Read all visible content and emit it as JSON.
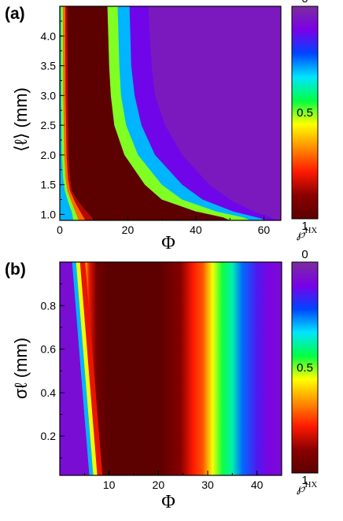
{
  "colors": {
    "colormap": [
      "#5c0000",
      "#8b0000",
      "#ff1a00",
      "#ff8c00",
      "#ffff00",
      "#00ff44",
      "#00e5ff",
      "#0044ff",
      "#7a00e8",
      "#7b2d9e"
    ],
    "colormap_note": "value 1 at bottom (dark red) to 0 at top (purple)"
  },
  "chart_data": [
    {
      "type": "heatmap",
      "panel_label": "(a)",
      "xlabel": "Φ",
      "ylabel": "⟨ℓ⟩ (mm)",
      "x_ticks": [
        "0",
        "20",
        "40",
        "60"
      ],
      "x_tick_values": [
        0,
        20,
        40,
        60
      ],
      "y_ticks": [
        "1.0",
        "1.5",
        "2.0",
        "2.5",
        "3.0",
        "3.5",
        "4.0"
      ],
      "y_tick_values": [
        1.0,
        1.5,
        2.0,
        2.5,
        3.0,
        3.5,
        4.0
      ],
      "xlim": [
        0,
        65
      ],
      "ylim": [
        0.9,
        4.5
      ],
      "colorbar": {
        "labels": [
          "0",
          "0.5",
          "1"
        ],
        "label_values": [
          0,
          0.5,
          1
        ],
        "title": "℘",
        "title_sup": "HX"
      },
      "contours": [
        {
          "level": 0.85,
          "points": [
            [
              2.2,
              4.5
            ],
            [
              2.3,
              3.0
            ],
            [
              2.6,
              2.0
            ],
            [
              3.0,
              1.6
            ],
            [
              3.5,
              1.4
            ],
            [
              5,
              1.25
            ],
            [
              7,
              1.1
            ],
            [
              9,
              0.98
            ],
            [
              10,
              0.9
            ]
          ]
        },
        {
          "level": 0.7,
          "points": [
            [
              1.6,
              4.5
            ],
            [
              1.7,
              3.0
            ],
            [
              2.0,
              2.0
            ],
            [
              2.4,
              1.6
            ],
            [
              3.0,
              1.4
            ],
            [
              4.5,
              1.2
            ],
            [
              6,
              1.05
            ],
            [
              7.5,
              0.9
            ]
          ]
        },
        {
          "level": 0.5,
          "points": [
            [
              0.9,
              4.5
            ],
            [
              1.0,
              3.0
            ],
            [
              1.3,
              2.0
            ],
            [
              1.7,
              1.6
            ],
            [
              2.2,
              1.4
            ],
            [
              3.5,
              1.2
            ],
            [
              4.5,
              1.05
            ],
            [
              5.5,
              0.9
            ]
          ]
        },
        {
          "level": 0.3,
          "points": [
            [
              0.3,
              4.5
            ],
            [
              0.4,
              3.0
            ],
            [
              0.6,
              2.0
            ],
            [
              1.0,
              1.6
            ],
            [
              1.5,
              1.4
            ],
            [
              2.5,
              1.2
            ],
            [
              3.5,
              1.05
            ],
            [
              4,
              0.9
            ]
          ]
        },
        {
          "level": 0.75,
          "points": [
            [
              14,
              4.5
            ],
            [
              14.5,
              3.5
            ],
            [
              15,
              3.0
            ],
            [
              16,
              2.5
            ],
            [
              19,
              2.0
            ],
            [
              25,
              1.5
            ],
            [
              30,
              1.25
            ],
            [
              40,
              1.05
            ],
            [
              48,
              0.95
            ],
            [
              50,
              0.9
            ]
          ]
        },
        {
          "level": 0.5,
          "points": [
            [
              17,
              4.5
            ],
            [
              17.5,
              3.5
            ],
            [
              18,
              3.0
            ],
            [
              19.5,
              2.5
            ],
            [
              23,
              2.0
            ],
            [
              30,
              1.5
            ],
            [
              36,
              1.25
            ],
            [
              46,
              1.05
            ],
            [
              54,
              0.95
            ],
            [
              56,
              0.9
            ]
          ]
        },
        {
          "level": 0.3,
          "points": [
            [
              20.5,
              4.5
            ],
            [
              21,
              3.5
            ],
            [
              22,
              3.0
            ],
            [
              24,
              2.5
            ],
            [
              28,
              2.0
            ],
            [
              36,
              1.5
            ],
            [
              42,
              1.25
            ],
            [
              51,
              1.05
            ],
            [
              58,
              0.95
            ],
            [
              61,
              0.9
            ]
          ]
        },
        {
          "level": 0.12,
          "points": [
            [
              26,
              4.5
            ],
            [
              27,
              3.5
            ],
            [
              28,
              3.0
            ],
            [
              31,
              2.5
            ],
            [
              36,
              2.0
            ],
            [
              44,
              1.5
            ],
            [
              50,
              1.25
            ],
            [
              57,
              1.05
            ],
            [
              62,
              0.95
            ],
            [
              64,
              0.9
            ]
          ]
        }
      ]
    },
    {
      "type": "heatmap",
      "panel_label": "(b)",
      "xlabel": "Φ",
      "ylabel": "σℓ (mm)",
      "x_ticks": [
        "10",
        "20",
        "30",
        "40"
      ],
      "x_tick_values": [
        10,
        20,
        30,
        40
      ],
      "y_ticks": [
        "0.2",
        "0.4",
        "0.6",
        "0.8"
      ],
      "y_tick_values": [
        0.2,
        0.4,
        0.6,
        0.8
      ],
      "xlim": [
        0,
        45
      ],
      "ylim": [
        0.02,
        1.0
      ],
      "colorbar": {
        "labels": [
          "0",
          "0.5",
          "1"
        ],
        "label_values": [
          0,
          0.5,
          1
        ],
        "title": "℘",
        "title_sup": "HX"
      },
      "columns": [
        {
          "x": 0,
          "value": 0.08
        },
        {
          "x": 2.0,
          "value": 0.12
        },
        {
          "x": 3.5,
          "value": 0.25
        },
        {
          "x": 4.3,
          "value": 0.45
        },
        {
          "x": 5.0,
          "value": 0.6
        },
        {
          "x": 6.0,
          "value": 0.8
        },
        {
          "x": 7.5,
          "value": 0.95
        },
        {
          "x": 10,
          "value": 1.0
        },
        {
          "x": 20,
          "value": 1.0
        },
        {
          "x": 24.5,
          "value": 0.9
        },
        {
          "x": 27,
          "value": 0.78
        },
        {
          "x": 29,
          "value": 0.72
        },
        {
          "x": 31,
          "value": 0.55
        },
        {
          "x": 33,
          "value": 0.45
        },
        {
          "x": 35,
          "value": 0.38
        },
        {
          "x": 37,
          "value": 0.25
        },
        {
          "x": 40,
          "value": 0.15
        },
        {
          "x": 42.5,
          "value": 0.1
        },
        {
          "x": 45,
          "value": 0.08
        }
      ],
      "edge_shift_low_phi": {
        "x_at_top": 2.5,
        "x_at_bottom": 6.0
      }
    }
  ]
}
